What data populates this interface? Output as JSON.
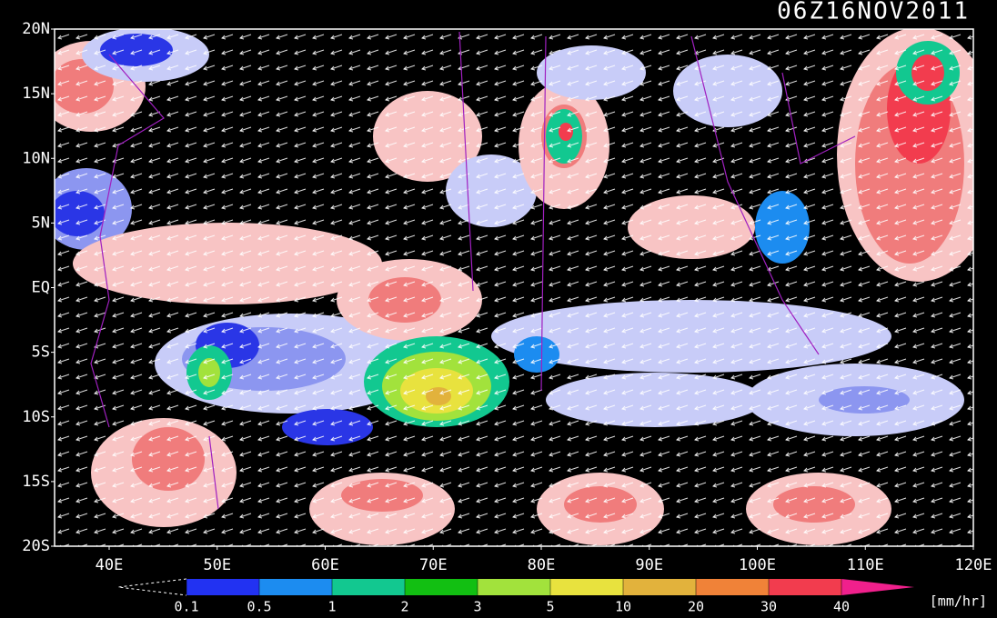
{
  "title": "06Z16NOV2011",
  "map": {
    "lat_labels": [
      "20N",
      "15N",
      "10N",
      "5N",
      "EQ",
      "5S",
      "10S",
      "15S",
      "20S"
    ],
    "lon_labels": [
      "40E",
      "50E",
      "60E",
      "70E",
      "80E",
      "90E",
      "100E",
      "110E",
      "120E"
    ]
  },
  "colorbar": {
    "levels": [
      0.1,
      0.5,
      1,
      2,
      3,
      5,
      10,
      20,
      30,
      40
    ],
    "colors": [
      "#2232f2",
      "#1c8cf0",
      "#12c890",
      "#12bf12",
      "#a2e23c",
      "#e8e23e",
      "#e2b23c",
      "#f08238",
      "#f23c4e",
      "#f0208c"
    ],
    "unit": "[mm/hr]"
  }
}
